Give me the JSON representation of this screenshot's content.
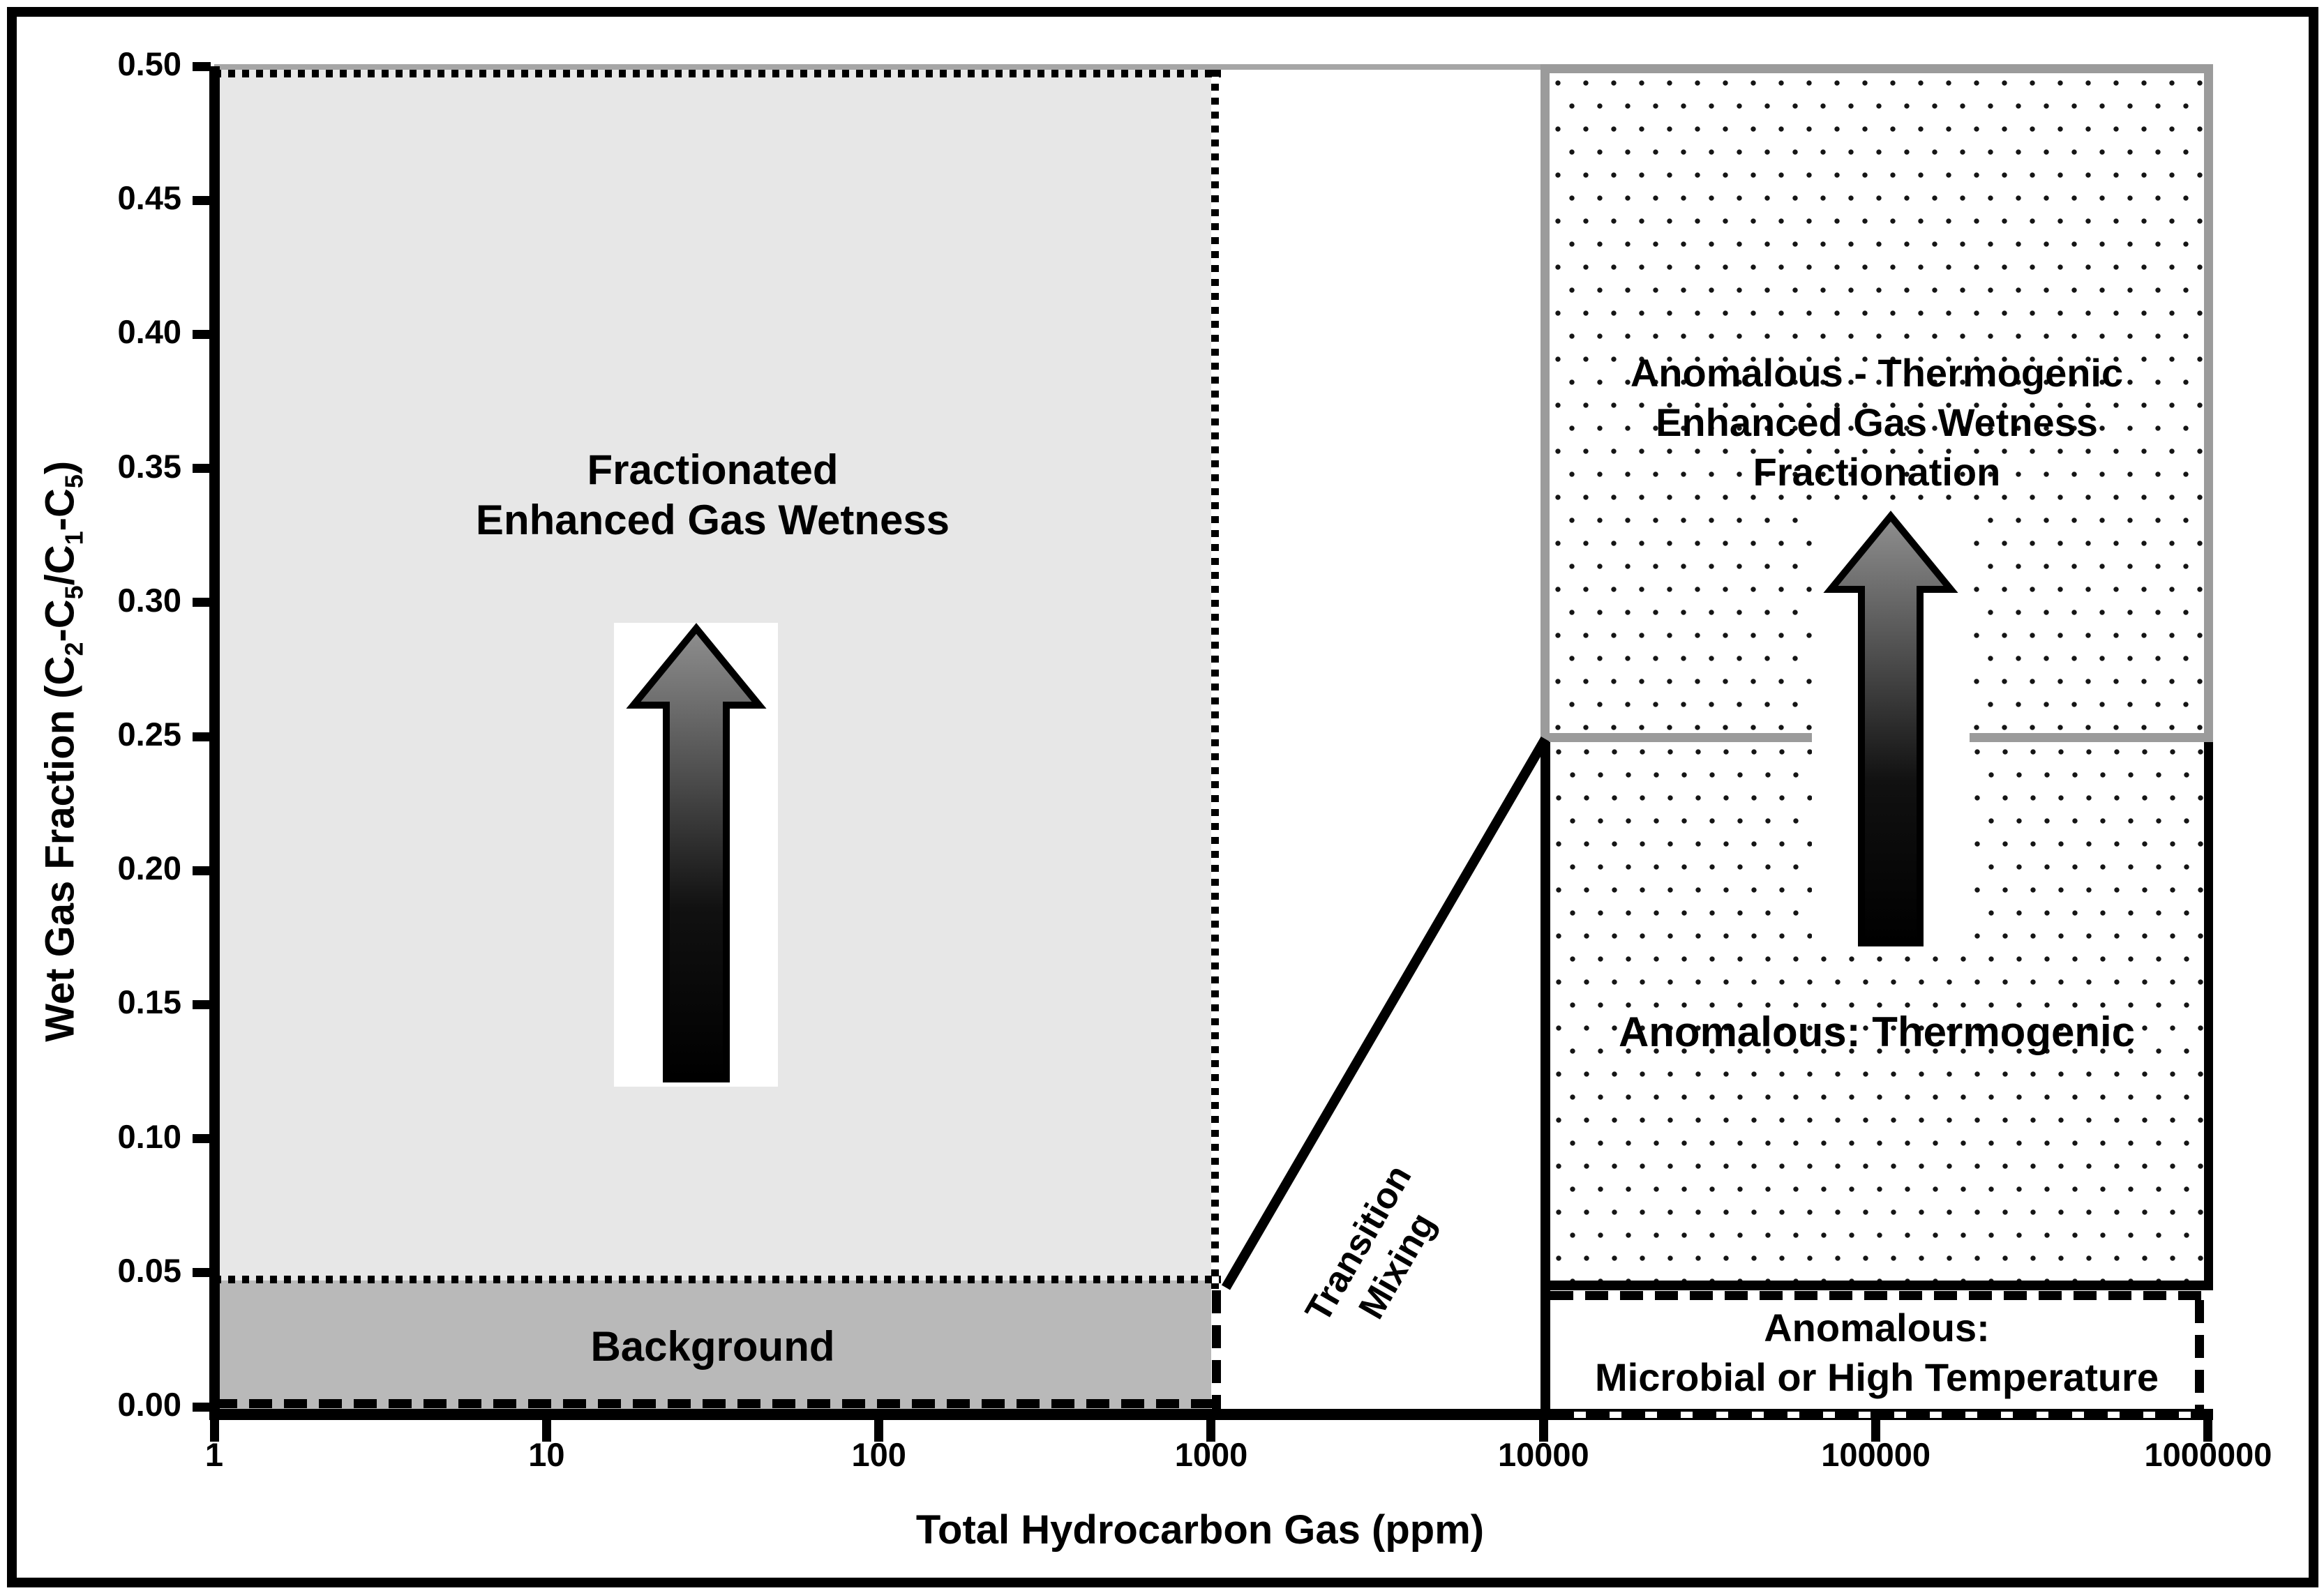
{
  "axes": {
    "x": {
      "title": "Total Hydrocarbon Gas (ppm)",
      "scale": "log",
      "ticks": [
        "1",
        "10",
        "100",
        "1000",
        "10000",
        "100000",
        "1000000"
      ]
    },
    "y": {
      "title_text": "Wet Gas Fraction (C2-C5/C1-C5)",
      "title_segments": [
        {
          "t": "Wet Gas Fraction (C"
        },
        {
          "t": "2",
          "sub": true
        },
        {
          "t": "-C"
        },
        {
          "t": "5",
          "sub": true
        },
        {
          "t": "/C"
        },
        {
          "t": "1",
          "sub": true
        },
        {
          "t": "-C"
        },
        {
          "t": "5",
          "sub": true
        },
        {
          "t": ")"
        }
      ],
      "ticks": [
        "0.50",
        "0.45",
        "0.40",
        "0.35",
        "0.30",
        "0.25",
        "0.20",
        "0.15",
        "0.10",
        "0.05",
        "0.00"
      ]
    }
  },
  "regions": {
    "fractionated": {
      "line1": "Fractionated",
      "line2": "Enhanced Gas Wetness"
    },
    "background": {
      "label": "Background"
    },
    "transition": {
      "line1": "Transition",
      "line2": "Mixing"
    },
    "anomalous_fractionation": {
      "line1": "Anomalous - Thermogenic",
      "line2": "Enhanced Gas Wetness",
      "line3": "Fractionation"
    },
    "anomalous_thermogenic": {
      "label": "Anomalous: Thermogenic"
    },
    "anomalous_microbial": {
      "line1": "Anomalous:",
      "line2": "Microbial or High Temperature"
    }
  },
  "icons": {
    "up_arrow_left": "up-arrow",
    "up_arrow_right": "up-arrow"
  },
  "colors": {
    "fractionated_fill": "#e7e7e7",
    "background_fill": "#b9b9b9",
    "topright_border": "#9b9b9b",
    "line_black": "#000000",
    "dot_pattern": "#151515",
    "arrow_gradient_top": "#8f8f8f",
    "arrow_gradient_bottom": "#000000"
  },
  "chart_data": {
    "type": "zone-diagram",
    "title": "",
    "xlabel": "Total Hydrocarbon Gas (ppm)",
    "ylabel": "Wet Gas Fraction (C2-C5/C1-C5)",
    "x_scale": "log",
    "xlim": [
      1,
      1000000
    ],
    "ylim": [
      0.0,
      0.5
    ],
    "x_ticks": [
      1,
      10,
      100,
      1000,
      10000,
      100000,
      1000000
    ],
    "y_ticks": [
      0.0,
      0.05,
      0.1,
      0.15,
      0.2,
      0.25,
      0.3,
      0.35,
      0.4,
      0.45,
      0.5
    ],
    "grid": false,
    "zones": [
      {
        "name": "Fractionated Enhanced Gas Wetness",
        "x_range_ppm": [
          1,
          1000
        ],
        "y_range": [
          0.047,
          0.5
        ],
        "fill": "light-gray",
        "border": "dotted black",
        "annotation": "upward arrow"
      },
      {
        "name": "Background",
        "x_range_ppm": [
          1,
          1000
        ],
        "y_range": [
          0.0,
          0.047
        ],
        "fill": "dark-gray"
      },
      {
        "name": "Transition Mixing",
        "x_range_ppm": [
          1000,
          10000
        ],
        "y_range": [
          0.0,
          0.25
        ],
        "fill": "white",
        "boundary_line": {
          "from_ppm_frac": [
            1000,
            0.045
          ],
          "to_ppm_frac": [
            10000,
            0.25
          ],
          "style": "solid black diagonal"
        },
        "left_border": "dashed vertical at 1000 ppm"
      },
      {
        "name": "Anomalous - Thermogenic Enhanced Gas Wetness Fractionation",
        "x_range_ppm": [
          10000,
          1000000
        ],
        "y_range": [
          0.25,
          0.5
        ],
        "fill": "white with black dot pattern",
        "border": "thick solid gray",
        "annotation": "upward arrow"
      },
      {
        "name": "Anomalous: Thermogenic",
        "x_range_ppm": [
          10000,
          1000000
        ],
        "y_range": [
          0.045,
          0.25
        ],
        "fill": "white with black dot pattern",
        "border": "solid black"
      },
      {
        "name": "Anomalous: Microbial or High Temperature",
        "x_range_ppm": [
          10000,
          1000000
        ],
        "y_range": [
          0.0,
          0.045
        ],
        "fill": "white",
        "border": "dashed black"
      }
    ],
    "extra_lines": [
      {
        "name": "background threshold",
        "style": "dashed black horizontal",
        "y": 0.005,
        "x_range_ppm": [
          1,
          1000
        ]
      }
    ]
  }
}
